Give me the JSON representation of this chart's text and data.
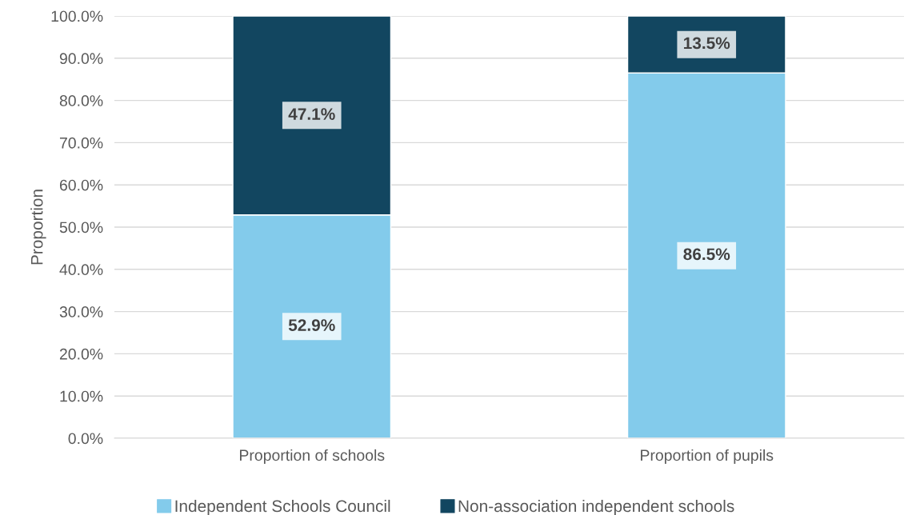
{
  "chart_data": {
    "type": "bar",
    "stacked": true,
    "ylabel": "Proportion",
    "categories": [
      "Proportion of schools",
      "Proportion of pupils"
    ],
    "series": [
      {
        "name": "Independent Schools Council",
        "color": "#83cbeb",
        "values": [
          52.9,
          86.5
        ],
        "value_labels": [
          "52.9%",
          "86.5%"
        ]
      },
      {
        "name": "Non-association independent schools",
        "color": "#124660",
        "values": [
          47.1,
          13.5
        ],
        "value_labels": [
          "47.1%",
          "13.5%"
        ]
      }
    ],
    "ylim": [
      0,
      100
    ],
    "yticks": [
      {
        "value": 0,
        "label": "0.0%"
      },
      {
        "value": 10,
        "label": "10.0%"
      },
      {
        "value": 20,
        "label": "20.0%"
      },
      {
        "value": 30,
        "label": "30.0%"
      },
      {
        "value": 40,
        "label": "40.0%"
      },
      {
        "value": 50,
        "label": "50.0%"
      },
      {
        "value": 60,
        "label": "60.0%"
      },
      {
        "value": 70,
        "label": "70.0%"
      },
      {
        "value": 80,
        "label": "80.0%"
      },
      {
        "value": 90,
        "label": "90.0%"
      },
      {
        "value": 100,
        "label": "100.0%"
      }
    ],
    "grid": "y",
    "legend": "bottom"
  }
}
